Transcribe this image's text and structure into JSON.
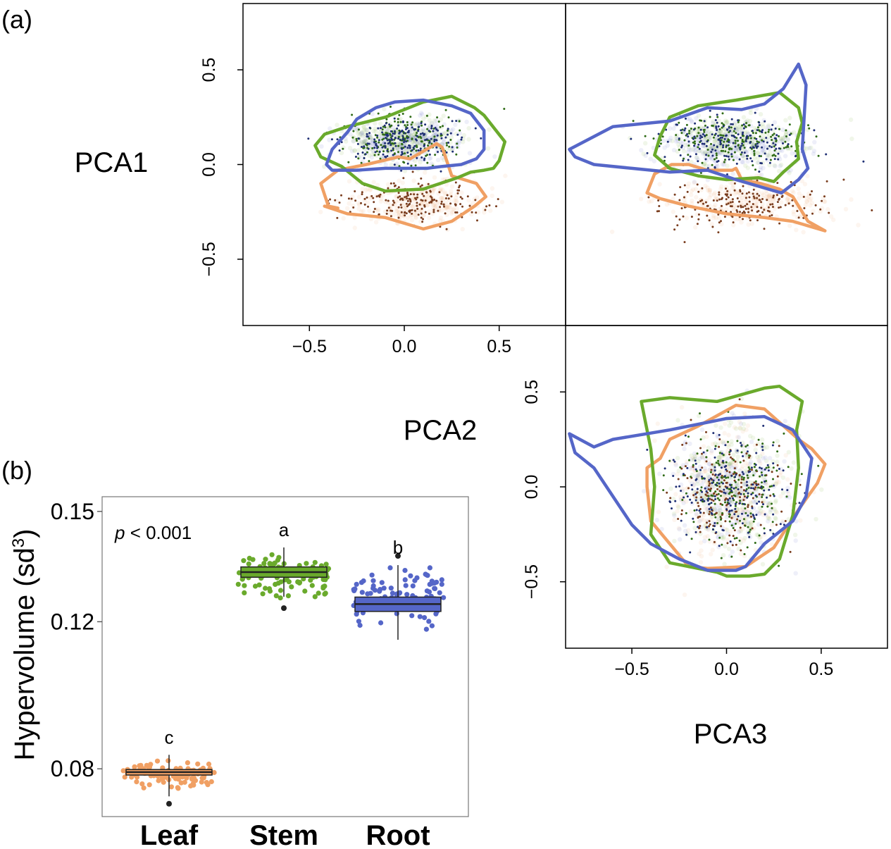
{
  "panel_a": {
    "label": "(a)"
  },
  "panel_b": {
    "label": "(b)"
  },
  "colors": {
    "leaf": "#f0a064",
    "stem": "#6aaa2c",
    "root": "#5566c8",
    "leaf_dot": "#7a3d1e",
    "stem_dot": "#2f6b16",
    "root_dot": "#1f2f74"
  },
  "chart_data": [
    {
      "type": "scatter",
      "panel": "a",
      "xlabel": "PCA2",
      "ylabel": "PCA1",
      "xlim": [
        -0.85,
        0.85
      ],
      "ylim": [
        -0.85,
        0.85
      ],
      "x_ticks": [
        "−0.5",
        "0.0",
        "0.5"
      ],
      "y_ticks": [
        "−0.5",
        "0.0",
        "0.5"
      ],
      "series": [
        {
          "name": "Leaf",
          "color": "#f0a064",
          "dot_color": "#7a3d1e",
          "center": [
            0.05,
            -0.2
          ],
          "spread": [
            0.17,
            0.055
          ],
          "hull": [
            [
              -0.44,
              -0.1
            ],
            [
              -0.4,
              -0.22
            ],
            [
              -0.4,
              -0.22
            ],
            [
              -0.35,
              -0.23
            ],
            [
              -0.42,
              -0.22
            ],
            [
              -0.42,
              -0.22
            ],
            [
              -0.3,
              -0.26
            ],
            [
              -0.1,
              -0.28
            ],
            [
              0.1,
              -0.34
            ],
            [
              0.25,
              -0.3
            ],
            [
              0.37,
              -0.22
            ],
            [
              0.43,
              -0.17
            ],
            [
              0.38,
              -0.1
            ],
            [
              0.25,
              -0.06
            ],
            [
              0.2,
              0.09
            ],
            [
              0.17,
              0.11
            ],
            [
              0.03,
              0.03
            ],
            [
              -0.03,
              0.04
            ],
            [
              -0.2,
              0.0
            ],
            [
              -0.35,
              -0.03
            ],
            [
              -0.44,
              -0.1
            ]
          ]
        },
        {
          "name": "Stem",
          "color": "#6aaa2c",
          "dot_color": "#2f6b16",
          "center": [
            -0.02,
            0.13
          ],
          "spread": [
            0.15,
            0.06
          ],
          "hull": [
            [
              -0.47,
              0.1
            ],
            [
              -0.42,
              0.16
            ],
            [
              -0.3,
              0.2
            ],
            [
              -0.1,
              0.25
            ],
            [
              0.1,
              0.33
            ],
            [
              0.25,
              0.36
            ],
            [
              0.37,
              0.3
            ],
            [
              0.42,
              0.26
            ],
            [
              0.53,
              0.12
            ],
            [
              0.5,
              0.02
            ],
            [
              0.47,
              -0.02
            ],
            [
              0.42,
              -0.03
            ],
            [
              0.35,
              -0.04
            ],
            [
              0.28,
              -0.07
            ],
            [
              0.25,
              -0.08
            ],
            [
              0.1,
              -0.13
            ],
            [
              -0.1,
              -0.14
            ],
            [
              -0.22,
              -0.1
            ],
            [
              -0.33,
              -0.01
            ],
            [
              -0.44,
              0.04
            ],
            [
              -0.47,
              0.1
            ]
          ]
        },
        {
          "name": "Root",
          "color": "#5566c8",
          "dot_color": "#1f2f74",
          "center": [
            0.0,
            0.12
          ],
          "spread": [
            0.15,
            0.06
          ],
          "hull": [
            [
              -0.41,
              0.0
            ],
            [
              -0.38,
              0.08
            ],
            [
              -0.3,
              0.17
            ],
            [
              -0.25,
              0.24
            ],
            [
              -0.15,
              0.3
            ],
            [
              -0.05,
              0.33
            ],
            [
              0.1,
              0.34
            ],
            [
              0.25,
              0.31
            ],
            [
              0.35,
              0.27
            ],
            [
              0.42,
              0.18
            ],
            [
              0.42,
              0.08
            ],
            [
              0.38,
              0.03
            ],
            [
              0.3,
              -0.0
            ],
            [
              0.2,
              -0.01
            ],
            [
              0.12,
              -0.02
            ],
            [
              0.02,
              -0.02
            ],
            [
              -0.1,
              -0.02
            ],
            [
              -0.25,
              -0.03
            ],
            [
              -0.38,
              -0.03
            ],
            [
              -0.41,
              0.0
            ]
          ]
        }
      ]
    },
    {
      "type": "scatter",
      "panel": "a",
      "xlabel": "",
      "ylabel": "",
      "xlim": [
        -0.85,
        0.85
      ],
      "ylim": [
        -0.85,
        0.85
      ],
      "series": [
        {
          "name": "Leaf",
          "color": "#f0a064",
          "dot_color": "#7a3d1e",
          "center": [
            0.08,
            -0.2
          ],
          "spread": [
            0.2,
            0.055
          ],
          "hull": [
            [
              -0.42,
              -0.15
            ],
            [
              -0.35,
              -0.18
            ],
            [
              -0.2,
              -0.22
            ],
            [
              0.0,
              -0.26
            ],
            [
              0.2,
              -0.28
            ],
            [
              0.35,
              -0.3
            ],
            [
              0.52,
              -0.35
            ],
            [
              0.43,
              -0.3
            ],
            [
              0.35,
              -0.17
            ],
            [
              0.28,
              -0.13
            ],
            [
              0.18,
              -0.1
            ],
            [
              0.08,
              -0.08
            ],
            [
              0.05,
              -0.02
            ],
            [
              0.03,
              -0.03
            ],
            [
              -0.1,
              -0.03
            ],
            [
              -0.2,
              0.0
            ],
            [
              -0.29,
              0.0
            ],
            [
              -0.38,
              -0.05
            ],
            [
              -0.42,
              -0.15
            ]
          ]
        },
        {
          "name": "Stem",
          "color": "#6aaa2c",
          "dot_color": "#2f6b16",
          "center": [
            0.05,
            0.13
          ],
          "spread": [
            0.17,
            0.06
          ],
          "hull": [
            [
              -0.38,
              0.05
            ],
            [
              -0.35,
              0.15
            ],
            [
              -0.3,
              0.25
            ],
            [
              -0.15,
              0.31
            ],
            [
              0.05,
              0.34
            ],
            [
              0.28,
              0.38
            ],
            [
              0.38,
              0.3
            ],
            [
              0.4,
              0.22
            ],
            [
              0.37,
              0.12
            ],
            [
              0.38,
              0.03
            ],
            [
              0.3,
              -0.04
            ],
            [
              0.25,
              -0.09
            ],
            [
              0.17,
              -0.07
            ],
            [
              0.0,
              -0.08
            ],
            [
              -0.15,
              -0.06
            ],
            [
              -0.3,
              -0.02
            ],
            [
              -0.38,
              0.05
            ]
          ]
        },
        {
          "name": "Root",
          "color": "#5566c8",
          "dot_color": "#1f2f74",
          "center": [
            0.02,
            0.1
          ],
          "spread": [
            0.2,
            0.07
          ],
          "hull": [
            [
              -0.83,
              0.08
            ],
            [
              -0.6,
              0.2
            ],
            [
              -0.3,
              0.23
            ],
            [
              -0.1,
              0.3
            ],
            [
              0.08,
              0.29
            ],
            [
              0.2,
              0.32
            ],
            [
              0.3,
              0.4
            ],
            [
              0.38,
              0.53
            ],
            [
              0.42,
              0.42
            ],
            [
              0.4,
              0.08
            ],
            [
              0.43,
              -0.02
            ],
            [
              0.38,
              -0.08
            ],
            [
              0.29,
              -0.15
            ],
            [
              0.05,
              -0.08
            ],
            [
              -0.1,
              -0.03
            ],
            [
              -0.3,
              -0.04
            ],
            [
              -0.5,
              -0.02
            ],
            [
              -0.7,
              0.0
            ],
            [
              -0.8,
              0.04
            ],
            [
              -0.83,
              0.08
            ]
          ]
        }
      ]
    },
    {
      "type": "scatter",
      "panel": "a",
      "xlabel": "PCA3",
      "ylabel": "",
      "xlim": [
        -0.85,
        0.85
      ],
      "ylim": [
        -0.85,
        0.85
      ],
      "x_ticks": [
        "−0.5",
        "0.0",
        "0.5"
      ],
      "y_ticks": [
        "−0.5",
        "0.0",
        "0.5"
      ],
      "series": [
        {
          "name": "Leaf",
          "color": "#f0a064",
          "dot_color": "#7a3d1e",
          "center": [
            0.0,
            -0.02
          ],
          "spread": [
            0.14,
            0.15
          ],
          "hull": [
            [
              -0.42,
              0.1
            ],
            [
              -0.35,
              0.15
            ],
            [
              -0.3,
              0.25
            ],
            [
              -0.15,
              0.32
            ],
            [
              0.05,
              0.43
            ],
            [
              0.2,
              0.41
            ],
            [
              0.38,
              0.25
            ],
            [
              0.45,
              0.2
            ],
            [
              0.52,
              0.12
            ],
            [
              0.48,
              0.02
            ],
            [
              0.38,
              -0.12
            ],
            [
              0.25,
              -0.32
            ],
            [
              0.1,
              -0.42
            ],
            [
              -0.1,
              -0.43
            ],
            [
              -0.2,
              -0.42
            ],
            [
              -0.3,
              -0.3
            ],
            [
              -0.4,
              -0.18
            ],
            [
              -0.42,
              0.0
            ],
            [
              -0.42,
              0.1
            ]
          ]
        },
        {
          "name": "Stem",
          "color": "#6aaa2c",
          "dot_color": "#2f6b16",
          "center": [
            0.05,
            0.0
          ],
          "spread": [
            0.14,
            0.16
          ],
          "hull": [
            [
              -0.45,
              0.45
            ],
            [
              -0.3,
              0.47
            ],
            [
              -0.05,
              0.45
            ],
            [
              0.2,
              0.52
            ],
            [
              0.28,
              0.53
            ],
            [
              0.4,
              0.45
            ],
            [
              0.37,
              0.3
            ],
            [
              0.38,
              0.1
            ],
            [
              0.35,
              -0.15
            ],
            [
              0.28,
              -0.38
            ],
            [
              0.2,
              -0.46
            ],
            [
              0.12,
              -0.47
            ],
            [
              0.0,
              -0.47
            ],
            [
              -0.05,
              -0.45
            ],
            [
              -0.3,
              -0.4
            ],
            [
              -0.4,
              -0.25
            ],
            [
              -0.38,
              0.0
            ],
            [
              -0.4,
              0.2
            ],
            [
              -0.45,
              0.45
            ]
          ]
        },
        {
          "name": "Root",
          "color": "#5566c8",
          "dot_color": "#1f2f74",
          "center": [
            0.0,
            0.0
          ],
          "spread": [
            0.16,
            0.14
          ],
          "hull": [
            [
              -0.83,
              0.28
            ],
            [
              -0.7,
              0.21
            ],
            [
              -0.6,
              0.25
            ],
            [
              -0.3,
              0.3
            ],
            [
              0.0,
              0.36
            ],
            [
              0.2,
              0.37
            ],
            [
              0.35,
              0.3
            ],
            [
              0.45,
              0.15
            ],
            [
              0.42,
              -0.05
            ],
            [
              0.35,
              -0.18
            ],
            [
              0.2,
              -0.3
            ],
            [
              0.1,
              -0.42
            ],
            [
              0.05,
              -0.44
            ],
            [
              -0.1,
              -0.44
            ],
            [
              -0.25,
              -0.38
            ],
            [
              -0.4,
              -0.3
            ],
            [
              -0.5,
              -0.2
            ],
            [
              -0.6,
              -0.05
            ],
            [
              -0.7,
              0.1
            ],
            [
              -0.8,
              0.18
            ],
            [
              -0.83,
              0.28
            ]
          ]
        }
      ]
    },
    {
      "type": "box",
      "panel": "b",
      "ylabel": "Hypervolume (sd³)",
      "ylabel_text": "Hypervolume (sd",
      "ylabel_sup": "3",
      "ylabel_close": ")",
      "ylim": [
        0.067,
        0.154
      ],
      "y_ticks": [
        0.08,
        0.12,
        0.15
      ],
      "y_tick_labels": [
        "0.08",
        "0.12",
        "0.15"
      ],
      "annotation_prefix": "p",
      "annotation_rest": " < 0.001",
      "categories": [
        "Leaf",
        "Stem",
        "Root"
      ],
      "category_colors": [
        "#f0a064",
        "#6aaa2c",
        "#5566c8"
      ],
      "boxes": [
        {
          "name": "Leaf",
          "q1": 0.0783,
          "median": 0.0791,
          "q3": 0.0798,
          "whisker_low": 0.0725,
          "whisker_high": 0.0838,
          "outliers": [
            0.0705
          ],
          "letter": "c",
          "jitter_range": [
            0.0735,
            0.0835
          ]
        },
        {
          "name": "Stem",
          "q1": 0.1321,
          "median": 0.1335,
          "q3": 0.1349,
          "whisker_low": 0.1268,
          "whisker_high": 0.1402,
          "outliers": [
            0.1237
          ],
          "letter": "a",
          "jitter_range": [
            0.1245,
            0.1405
          ]
        },
        {
          "name": "Root",
          "q1": 0.1228,
          "median": 0.1248,
          "q3": 0.1267,
          "whisker_low": 0.1151,
          "whisker_high": 0.1354,
          "outliers": [
            0.1379
          ],
          "letter": "b",
          "jitter_range": [
            0.1155,
            0.1385
          ]
        }
      ]
    }
  ]
}
